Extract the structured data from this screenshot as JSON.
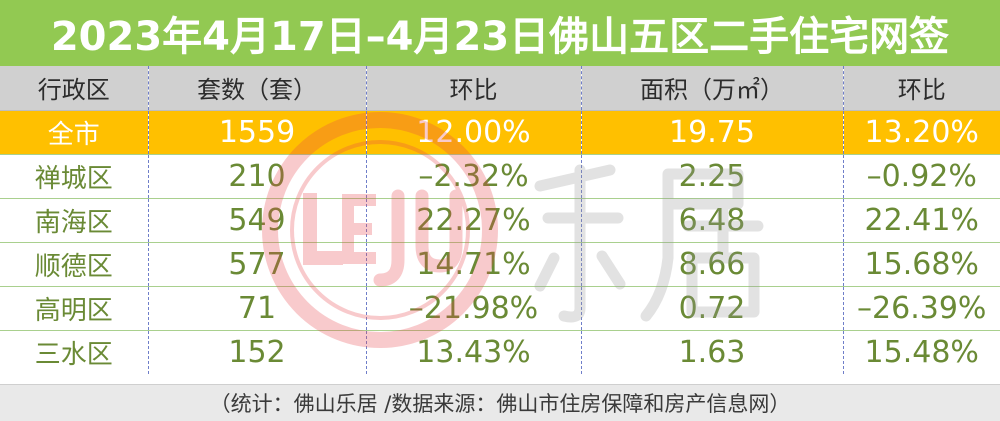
{
  "title": "2023年4月17日–4月23日佛山五区二手住宅网签",
  "columns": [
    "行政区",
    "套数（套）",
    "环比",
    "面积（万㎡）",
    "环比"
  ],
  "total": {
    "name": "全市",
    "units": "1559",
    "units_change": "12.00%",
    "area": "19.75",
    "area_change": "13.20%"
  },
  "districts": [
    {
      "name": "禅城区",
      "units": "210",
      "units_change": "–2.32%",
      "area": "2.25",
      "area_change": "–0.92%"
    },
    {
      "name": "南海区",
      "units": "549",
      "units_change": "22.27%",
      "area": "6.48",
      "area_change": "22.41%"
    },
    {
      "name": "顺德区",
      "units": "577",
      "units_change": "14.71%",
      "area": "8.66",
      "area_change": "15.68%"
    },
    {
      "name": "高明区",
      "units": "71",
      "units_change": "–21.98%",
      "area": "0.72",
      "area_change": "–26.39%"
    },
    {
      "name": "三水区",
      "units": "152",
      "units_change": "13.43%",
      "area": "1.63",
      "area_change": "15.48%"
    }
  ],
  "footer": "（统计：佛山乐居 /数据来源：佛山市住房保障和房产信息网）",
  "watermark": {
    "logo_letters": "LEJU",
    "logo_text": "乐居",
    "logo_color": "#e8464b"
  },
  "colors": {
    "title_bg": "#92c952",
    "header_bg": "#d0d0d0",
    "total_bg": "#ffc000",
    "value_text": "#6a8a35"
  }
}
